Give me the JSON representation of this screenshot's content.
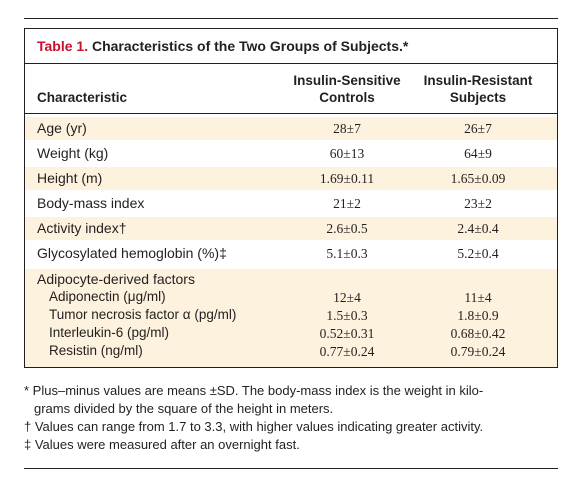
{
  "table": {
    "title_label": "Table 1.",
    "title_text": " Characteristics of the Two Groups of Subjects.*",
    "headers": {
      "characteristic": "Characteristic",
      "col1_line1": "Insulin-Sensitive",
      "col1_line2": "Controls",
      "col2_line1": "Insulin-Resistant",
      "col2_line2": "Subjects"
    },
    "rows": [
      {
        "label": "Age (yr)",
        "col1": "28±7",
        "col2": "26±7"
      },
      {
        "label": "Weight (kg)",
        "col1": "60±13",
        "col2": "64±9"
      },
      {
        "label": "Height (m)",
        "col1": "1.69±0.11",
        "col2": "1.65±0.09"
      },
      {
        "label": "Body-mass index",
        "col1": "21±2",
        "col2": "23±2"
      },
      {
        "label": "Activity index†",
        "col1": "2.6±0.5",
        "col2": "2.4±0.4"
      },
      {
        "label": "Glycosylated hemoglobin (%)‡",
        "col1": "5.1±0.3",
        "col2": "5.2±0.4"
      }
    ],
    "group": {
      "label": "Adipocyte-derived factors",
      "rows": [
        {
          "label": "Adiponectin (μg/ml)",
          "col1": "12±4",
          "col2": "11±4"
        },
        {
          "label": "Tumor necrosis factor α (pg/ml)",
          "col1": "1.5±0.3",
          "col2": "1.8±0.9"
        },
        {
          "label": "Interleukin-6 (pg/ml)",
          "col1": "0.52±0.31",
          "col2": "0.68±0.42"
        },
        {
          "label": "Resistin (ng/ml)",
          "col1": "0.77±0.24",
          "col2": "0.79±0.24"
        }
      ]
    }
  },
  "footnotes": {
    "line1": "* Plus–minus values are means ±SD. The body-mass index is the weight in kilo-",
    "line2": "grams divided by the square of the height in meters.",
    "line3": "† Values can range from 1.7 to 3.3, with higher values indicating greater activity.",
    "line4": "‡ Values were measured after an overnight fast."
  },
  "colors": {
    "title_accent": "#c8102e",
    "row_shade": "#fcf2dd",
    "rule": "#231f20"
  }
}
